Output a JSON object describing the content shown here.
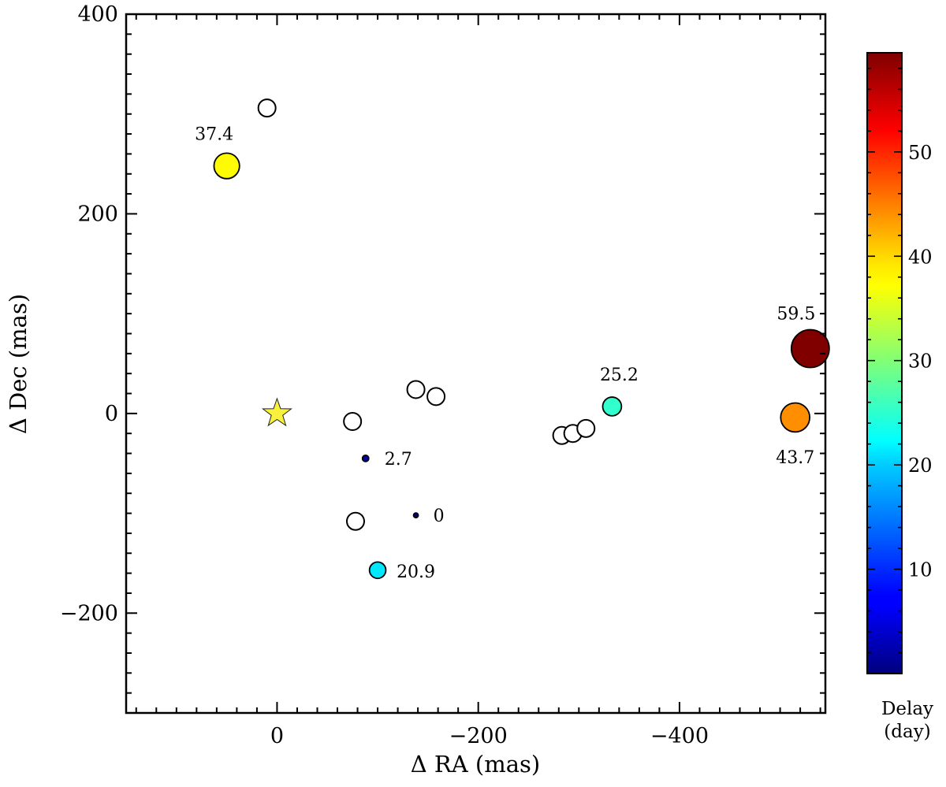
{
  "chart_data": {
    "type": "scatter",
    "xlabel": "Δ RA (mas)",
    "ylabel": "Δ Dec (mas)",
    "xlim": [
      150,
      -545
    ],
    "ylim": [
      -300,
      400
    ],
    "x_ticks": [
      0,
      -200,
      -400
    ],
    "x_tick_labels": [
      "0",
      "−200",
      "−400"
    ],
    "y_ticks": [
      -200,
      0,
      200,
      400
    ],
    "y_tick_labels": [
      "−200",
      "0",
      "200",
      "400"
    ],
    "grid": false,
    "star_marker": {
      "x": 0,
      "y": 0,
      "color": "#f8f23c"
    },
    "delayed_points": [
      {
        "x": -138,
        "y": -102,
        "delay": 0,
        "label": "0"
      },
      {
        "x": -88,
        "y": -45,
        "delay": 2.7,
        "label": "2.7"
      },
      {
        "x": -100,
        "y": -157,
        "delay": 20.9,
        "label": "20.9"
      },
      {
        "x": -333,
        "y": 7,
        "delay": 25.2,
        "label": "25.2"
      },
      {
        "x": 50,
        "y": 248,
        "delay": 37.4,
        "label": "37.4"
      },
      {
        "x": -515,
        "y": -4,
        "delay": 43.7,
        "label": "43.7"
      },
      {
        "x": -530,
        "y": 65,
        "delay": 59.5,
        "label": "59.5"
      }
    ],
    "open_points": [
      {
        "x": 10,
        "y": 306
      },
      {
        "x": -75,
        "y": -8
      },
      {
        "x": -78,
        "y": -108
      },
      {
        "x": -138,
        "y": 24
      },
      {
        "x": -158,
        "y": 17
      },
      {
        "x": -283,
        "y": -22
      },
      {
        "x": -294,
        "y": -20
      },
      {
        "x": -307,
        "y": -15
      }
    ],
    "colorbar": {
      "min": 0,
      "max": 59.5,
      "ticks": [
        10,
        20,
        30,
        40,
        50
      ],
      "tick_labels": [
        "10",
        "20",
        "30",
        "40",
        "50"
      ],
      "title_line1": "Delay",
      "title_line2": "(day)",
      "colormap": "jet"
    }
  }
}
